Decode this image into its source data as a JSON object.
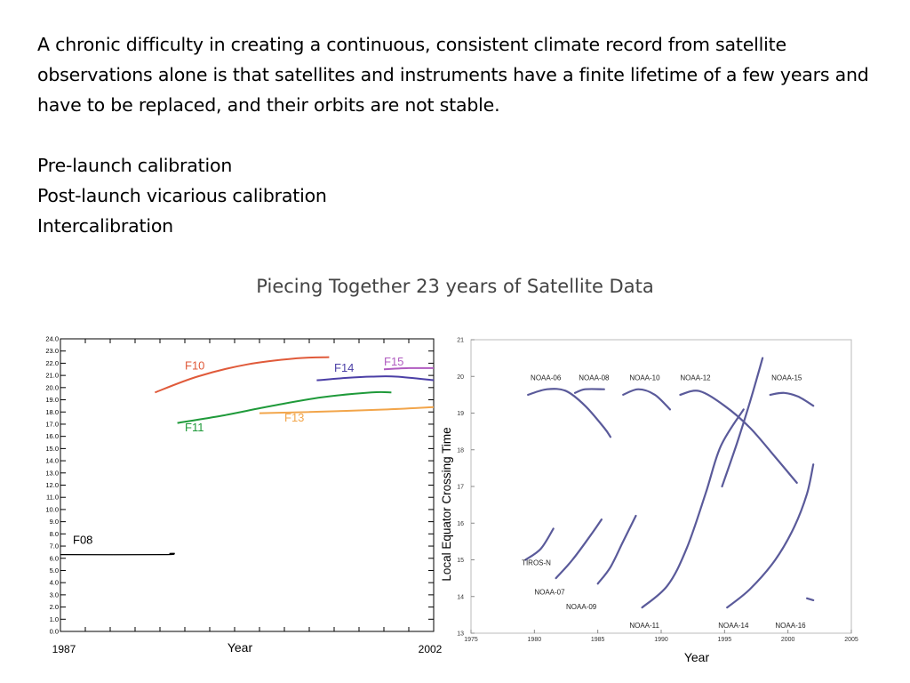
{
  "text": {
    "paragraph": "A chronic difficulty in creating a continuous, consistent climate record from satellite observations alone is that satellites and instruments have a finite lifetime of a few years and have to be replaced, and their orbits are not stable.",
    "bullets": [
      "Pre-launch calibration",
      "Post-launch vicarious calibration",
      "Intercalibration"
    ]
  },
  "figure_title": "Piecing Together 23 years of Satellite Data",
  "colors": {
    "F10": "#e05a3a",
    "F14": "#4b3fa6",
    "F15": "#b05cc0",
    "F11": "#1f9a3a",
    "F13": "#f2a54a",
    "F08": "#000000",
    "noaa": "#5a5a9a"
  },
  "chart_data": [
    {
      "type": "line",
      "title": "",
      "xlabel": "Year",
      "ylabel": "",
      "xlim": [
        1987,
        2002
      ],
      "ylim": [
        0,
        24
      ],
      "x_tick_labels": [
        "1987",
        "2002"
      ],
      "y_ticks": [
        "0.0",
        "1.0",
        "2.0",
        "3.0",
        "4.0",
        "5.0",
        "6.0",
        "7.0",
        "8.0",
        "9.0",
        "10.0",
        "11.0",
        "12.0",
        "13.0",
        "14.0",
        "15.0",
        "16.0",
        "17.0",
        "18.0",
        "19.0",
        "20.0",
        "21.0",
        "22.0",
        "23.0",
        "24.0"
      ],
      "series": [
        {
          "name": "F08",
          "color": "#000000",
          "label_at": [
            1987.5,
            7.2
          ],
          "points": [
            [
              1987.0,
              6.3
            ],
            [
              1991.2,
              6.3
            ],
            [
              1991.4,
              6.4
            ],
            [
              1991.6,
              6.4
            ]
          ]
        },
        {
          "name": "F10",
          "color": "#e05a3a",
          "label_at": [
            1992.0,
            21.5
          ],
          "points": [
            [
              1990.8,
              19.6
            ],
            [
              1992.5,
              20.9
            ],
            [
              1994.5,
              21.9
            ],
            [
              1996.5,
              22.4
            ],
            [
              1997.8,
              22.5
            ]
          ]
        },
        {
          "name": "F11",
          "color": "#1f9a3a",
          "label_at": [
            1992.0,
            16.4
          ],
          "points": [
            [
              1991.7,
              17.1
            ],
            [
              1993.5,
              17.7
            ],
            [
              1995.5,
              18.5
            ],
            [
              1997.5,
              19.2
            ],
            [
              1999.5,
              19.6
            ],
            [
              2000.3,
              19.6
            ]
          ]
        },
        {
          "name": "F13",
          "color": "#f2a54a",
          "label_at": [
            1996.0,
            17.2
          ],
          "points": [
            [
              1995.0,
              17.9
            ],
            [
              1997.0,
              18.0
            ],
            [
              2000.0,
              18.2
            ],
            [
              2002.0,
              18.4
            ]
          ]
        },
        {
          "name": "F14",
          "color": "#4b3fa6",
          "label_at": [
            1998.0,
            21.3
          ],
          "points": [
            [
              1997.3,
              20.6
            ],
            [
              1998.5,
              20.8
            ],
            [
              1999.5,
              20.9
            ],
            [
              2000.5,
              20.9
            ],
            [
              2002.0,
              20.6
            ]
          ]
        },
        {
          "name": "F15",
          "color": "#b05cc0",
          "label_at": [
            2000.0,
            21.8
          ],
          "points": [
            [
              2000.0,
              21.5
            ],
            [
              2001.0,
              21.6
            ],
            [
              2002.0,
              21.6
            ]
          ]
        }
      ]
    },
    {
      "type": "line",
      "title": "",
      "xlabel": "Year",
      "ylabel": "Local Equator Crossing Time",
      "xlim": [
        1975,
        2005
      ],
      "ylim": [
        13,
        21
      ],
      "x_ticks": [
        "1975",
        "1980",
        "1985",
        "1990",
        "1995",
        "2000",
        "2005"
      ],
      "y_ticks": [
        "13",
        "14",
        "15",
        "16",
        "17",
        "18",
        "19",
        "20",
        "21"
      ],
      "series": [
        {
          "name": "TIROS-N",
          "label_at": [
            1979.0,
            14.85
          ],
          "points": [
            [
              1979.3,
              15.0
            ],
            [
              1980.5,
              15.3
            ],
            [
              1981.5,
              15.85
            ]
          ]
        },
        {
          "name": "NOAA-06",
          "label_at": [
            1979.7,
            19.9
          ],
          "points": [
            [
              1979.5,
              19.5
            ],
            [
              1981.0,
              19.65
            ],
            [
              1982.5,
              19.6
            ],
            [
              1984.0,
              19.2
            ],
            [
              1985.5,
              18.6
            ],
            [
              1986.0,
              18.35
            ]
          ]
        },
        {
          "name": "NOAA-07",
          "label_at": [
            1980.0,
            14.05
          ],
          "points": [
            [
              1981.7,
              14.5
            ],
            [
              1983.0,
              15.0
            ],
            [
              1984.5,
              15.7
            ],
            [
              1985.3,
              16.1
            ]
          ]
        },
        {
          "name": "NOAA-08",
          "label_at": [
            1983.5,
            19.9
          ],
          "points": [
            [
              1983.2,
              19.55
            ],
            [
              1984.0,
              19.65
            ],
            [
              1985.5,
              19.65
            ]
          ]
        },
        {
          "name": "NOAA-09",
          "label_at": [
            1982.5,
            13.65
          ],
          "points": [
            [
              1985.0,
              14.35
            ],
            [
              1986.0,
              14.8
            ],
            [
              1987.0,
              15.5
            ],
            [
              1988.0,
              16.2
            ]
          ]
        },
        {
          "name": "NOAA-10",
          "label_at": [
            1987.5,
            19.9
          ],
          "points": [
            [
              1987.0,
              19.5
            ],
            [
              1988.2,
              19.65
            ],
            [
              1989.5,
              19.5
            ],
            [
              1990.7,
              19.1
            ]
          ]
        },
        {
          "name": "NOAA-11",
          "label_at": [
            1987.5,
            13.15
          ],
          "points": [
            [
              1988.5,
              13.7
            ],
            [
              1990.5,
              14.3
            ],
            [
              1992.0,
              15.3
            ],
            [
              1993.5,
              16.8
            ],
            [
              1994.7,
              18.1
            ],
            [
              1996.5,
              19.1
            ]
          ]
        },
        {
          "name": "NOAA-12",
          "label_at": [
            1991.5,
            19.9
          ],
          "points": [
            [
              1991.5,
              19.5
            ],
            [
              1993.0,
              19.6
            ],
            [
              1995.0,
              19.2
            ],
            [
              1997.0,
              18.6
            ],
            [
              1999.0,
              17.8
            ],
            [
              2000.7,
              17.1
            ]
          ]
        },
        {
          "name": "NOAA-14",
          "label_at": [
            1994.5,
            13.15
          ],
          "points": [
            [
              1994.8,
              17.0
            ],
            [
              1996.0,
              18.2
            ],
            [
              1997.0,
              19.3
            ],
            [
              1998.0,
              20.5
            ]
          ]
        },
        {
          "name": "NOAA-15",
          "label_at": [
            1998.7,
            19.9
          ],
          "points": [
            [
              1998.6,
              19.5
            ],
            [
              1999.7,
              19.55
            ],
            [
              2000.8,
              19.45
            ],
            [
              2002.0,
              19.2
            ]
          ]
        },
        {
          "name": "NOAA-16",
          "label_at": [
            1999.0,
            13.15
          ],
          "points": [
            [
              1995.2,
              13.7
            ],
            [
              1997.0,
              14.2
            ],
            [
              1999.0,
              15.0
            ],
            [
              2000.5,
              15.9
            ],
            [
              2001.5,
              16.8
            ],
            [
              2002.0,
              17.6
            ]
          ]
        },
        {
          "name": "",
          "points": [
            [
              2001.5,
              13.95
            ],
            [
              2002.0,
              13.9
            ]
          ]
        }
      ]
    }
  ]
}
